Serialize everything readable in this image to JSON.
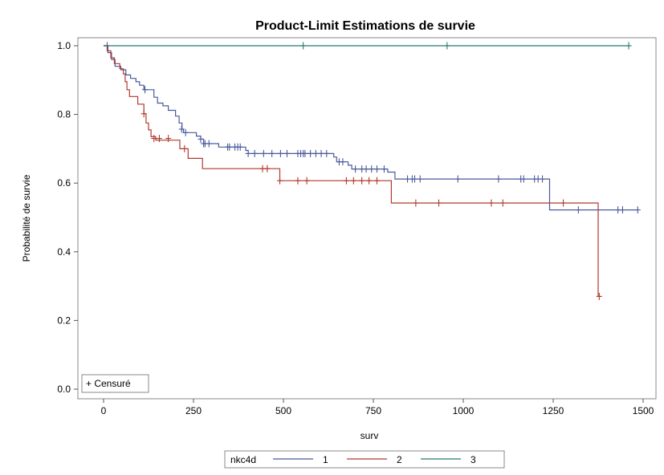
{
  "chart_data": {
    "type": "line",
    "title": "Product-Limit Estimations de survie",
    "xlabel": "surv",
    "ylabel": "Probabilité de survie",
    "xlim": [
      -50,
      1500
    ],
    "ylim": [
      0,
      1.0
    ],
    "x_ticks": [
      "0",
      "250",
      "500",
      "750",
      "1000",
      "1250",
      "1500"
    ],
    "y_ticks": [
      "0.0",
      "0.2",
      "0.4",
      "0.6",
      "0.8",
      "1.0"
    ],
    "inset_legend": "+ Censuré",
    "legend_title": "nkc4d",
    "legend_position": "bottom",
    "grid": false,
    "series": [
      {
        "name": "1",
        "color": "#4a5a9c",
        "steps": [
          [
            0,
            1.0
          ],
          [
            12,
            0.98
          ],
          [
            22,
            0.96
          ],
          [
            32,
            0.94
          ],
          [
            48,
            0.93
          ],
          [
            62,
            0.915
          ],
          [
            75,
            0.905
          ],
          [
            90,
            0.895
          ],
          [
            100,
            0.885
          ],
          [
            112,
            0.872
          ],
          [
            140,
            0.85
          ],
          [
            150,
            0.833
          ],
          [
            165,
            0.825
          ],
          [
            180,
            0.812
          ],
          [
            200,
            0.795
          ],
          [
            210,
            0.775
          ],
          [
            218,
            0.757
          ],
          [
            222,
            0.747
          ],
          [
            258,
            0.737
          ],
          [
            270,
            0.728
          ],
          [
            278,
            0.715
          ],
          [
            320,
            0.705
          ],
          [
            395,
            0.695
          ],
          [
            402,
            0.686
          ],
          [
            640,
            0.676
          ],
          [
            648,
            0.662
          ],
          [
            680,
            0.652
          ],
          [
            690,
            0.641
          ],
          [
            790,
            0.632
          ],
          [
            810,
            0.612
          ],
          [
            1235,
            0.612
          ],
          [
            1240,
            0.522
          ],
          [
            1485,
            0.522
          ]
        ],
        "censored": [
          [
            10,
            1.0
          ],
          [
            115,
            0.872
          ],
          [
            217,
            0.757
          ],
          [
            228,
            0.747
          ],
          [
            270,
            0.728
          ],
          [
            278,
            0.715
          ],
          [
            282,
            0.715
          ],
          [
            293,
            0.715
          ],
          [
            345,
            0.705
          ],
          [
            350,
            0.705
          ],
          [
            365,
            0.705
          ],
          [
            373,
            0.705
          ],
          [
            380,
            0.705
          ],
          [
            402,
            0.686
          ],
          [
            420,
            0.686
          ],
          [
            445,
            0.686
          ],
          [
            468,
            0.686
          ],
          [
            492,
            0.686
          ],
          [
            510,
            0.686
          ],
          [
            540,
            0.686
          ],
          [
            548,
            0.686
          ],
          [
            555,
            0.686
          ],
          [
            560,
            0.686
          ],
          [
            575,
            0.686
          ],
          [
            590,
            0.686
          ],
          [
            605,
            0.686
          ],
          [
            620,
            0.686
          ],
          [
            655,
            0.662
          ],
          [
            665,
            0.662
          ],
          [
            700,
            0.641
          ],
          [
            718,
            0.641
          ],
          [
            730,
            0.641
          ],
          [
            745,
            0.641
          ],
          [
            760,
            0.641
          ],
          [
            780,
            0.641
          ],
          [
            845,
            0.612
          ],
          [
            858,
            0.612
          ],
          [
            865,
            0.612
          ],
          [
            880,
            0.612
          ],
          [
            985,
            0.612
          ],
          [
            1098,
            0.612
          ],
          [
            1160,
            0.612
          ],
          [
            1168,
            0.612
          ],
          [
            1198,
            0.612
          ],
          [
            1208,
            0.612
          ],
          [
            1220,
            0.612
          ],
          [
            1320,
            0.522
          ],
          [
            1430,
            0.522
          ],
          [
            1443,
            0.522
          ],
          [
            1485,
            0.522
          ]
        ]
      },
      {
        "name": "2",
        "color": "#b03a2e",
        "steps": [
          [
            0,
            1.0
          ],
          [
            10,
            0.985
          ],
          [
            20,
            0.965
          ],
          [
            30,
            0.948
          ],
          [
            45,
            0.933
          ],
          [
            55,
            0.918
          ],
          [
            60,
            0.895
          ],
          [
            65,
            0.872
          ],
          [
            72,
            0.852
          ],
          [
            95,
            0.83
          ],
          [
            112,
            0.802
          ],
          [
            118,
            0.775
          ],
          [
            125,
            0.755
          ],
          [
            132,
            0.735
          ],
          [
            145,
            0.725
          ],
          [
            212,
            0.7
          ],
          [
            235,
            0.672
          ],
          [
            275,
            0.642
          ],
          [
            485,
            0.642
          ],
          [
            490,
            0.607
          ],
          [
            795,
            0.607
          ],
          [
            800,
            0.542
          ],
          [
            1372,
            0.542
          ],
          [
            1375,
            0.27
          ],
          [
            1382,
            0.27
          ]
        ],
        "censored": [
          [
            112,
            0.802
          ],
          [
            140,
            0.73
          ],
          [
            155,
            0.73
          ],
          [
            180,
            0.73
          ],
          [
            225,
            0.7
          ],
          [
            442,
            0.642
          ],
          [
            455,
            0.642
          ],
          [
            490,
            0.607
          ],
          [
            540,
            0.607
          ],
          [
            565,
            0.607
          ],
          [
            675,
            0.607
          ],
          [
            695,
            0.607
          ],
          [
            718,
            0.607
          ],
          [
            738,
            0.607
          ],
          [
            760,
            0.607
          ],
          [
            868,
            0.542
          ],
          [
            932,
            0.542
          ],
          [
            1078,
            0.542
          ],
          [
            1110,
            0.542
          ],
          [
            1278,
            0.542
          ],
          [
            1378,
            0.27
          ]
        ]
      },
      {
        "name": "3",
        "color": "#267a6e",
        "steps": [
          [
            0,
            1.0
          ],
          [
            1460,
            1.0
          ]
        ],
        "censored": [
          [
            555,
            1.0
          ],
          [
            955,
            1.0
          ],
          [
            1460,
            1.0
          ]
        ]
      }
    ]
  }
}
